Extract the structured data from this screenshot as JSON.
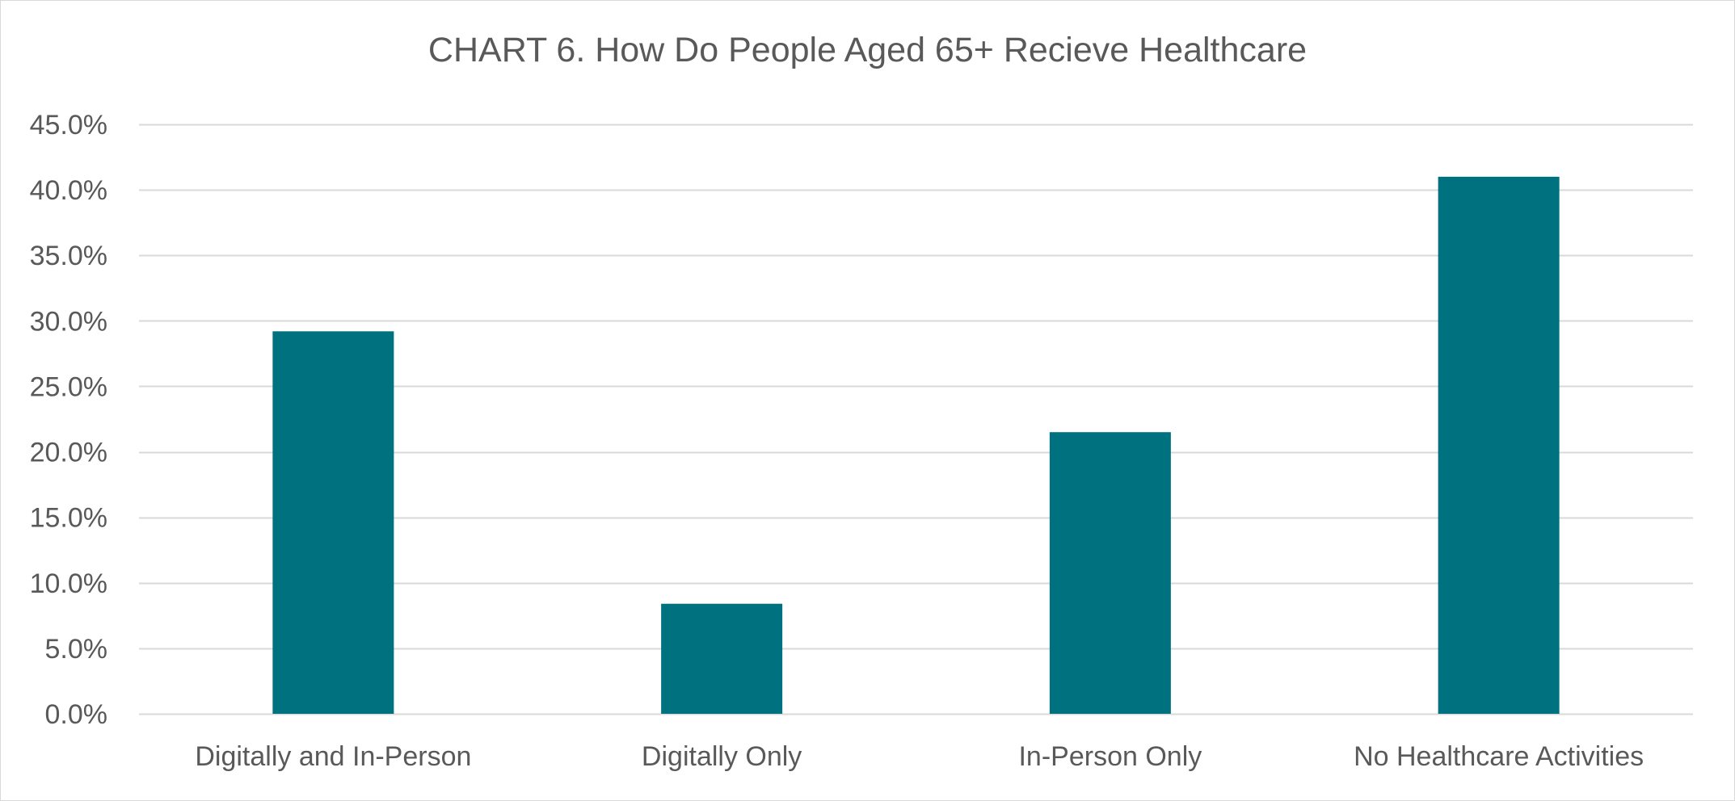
{
  "chart_data": {
    "type": "bar",
    "title": "CHART 6. How Do People Aged 65+ Recieve Healthcare",
    "xlabel": "",
    "ylabel": "",
    "categories": [
      "Digitally and In-Person",
      "Digitally Only",
      "In-Person Only",
      "No Healthcare Activities"
    ],
    "values": [
      29.2,
      8.4,
      21.5,
      41.0
    ],
    "ylim": [
      0,
      45
    ],
    "yticks": [
      0,
      5,
      10,
      15,
      20,
      25,
      30,
      35,
      40,
      45
    ],
    "ytick_labels": [
      "0.0%",
      "5.0%",
      "10.0%",
      "15.0%",
      "20.0%",
      "25.0%",
      "30.0%",
      "35.0%",
      "40.0%",
      "45.0%"
    ],
    "grid": true,
    "legend": "none",
    "bar_color": "#00717E",
    "grid_color": "#D9D9D9",
    "text_color": "#595959"
  }
}
